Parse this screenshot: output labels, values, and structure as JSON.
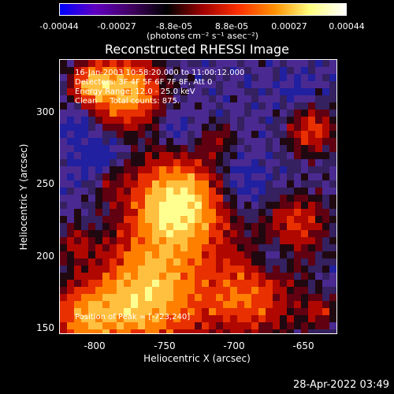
{
  "colorbar": {
    "ticks": [
      "-0.00044",
      "-0.00027",
      "-8.8e-05",
      "8.8e-05",
      "0.00027",
      "0.00044"
    ],
    "units": "(photons cm⁻² s⁻¹ asec⁻²)",
    "colors": [
      "#0000ff",
      "#6000c0",
      "#400060",
      "#000000",
      "#a00000",
      "#ff3000",
      "#ff9000",
      "#ffff80",
      "#ffffff"
    ]
  },
  "title": "Reconstructed RHESSI Image",
  "info": {
    "time": "16-Jan-2003 10:58:20.000 to 11:00:12.000",
    "detectors": "Detectors: 3F 4F 5F 6F 7F 8F, Att 0",
    "energy": "Energy Range: 12.0 - 25.0 keV",
    "clean": "Clean     Total counts: 875.",
    "peak": "Position of Peak = [-723,240]"
  },
  "axes": {
    "xlabel": "Heliocentric X (arcsec)",
    "ylabel": "Heliocentric Y (arcsec)",
    "xticks": [
      "-800",
      "-750",
      "-700",
      "-650"
    ],
    "yticks": [
      "300",
      "250",
      "200",
      "150"
    ]
  },
  "timestamp": "28-Apr-2022 03:49"
}
